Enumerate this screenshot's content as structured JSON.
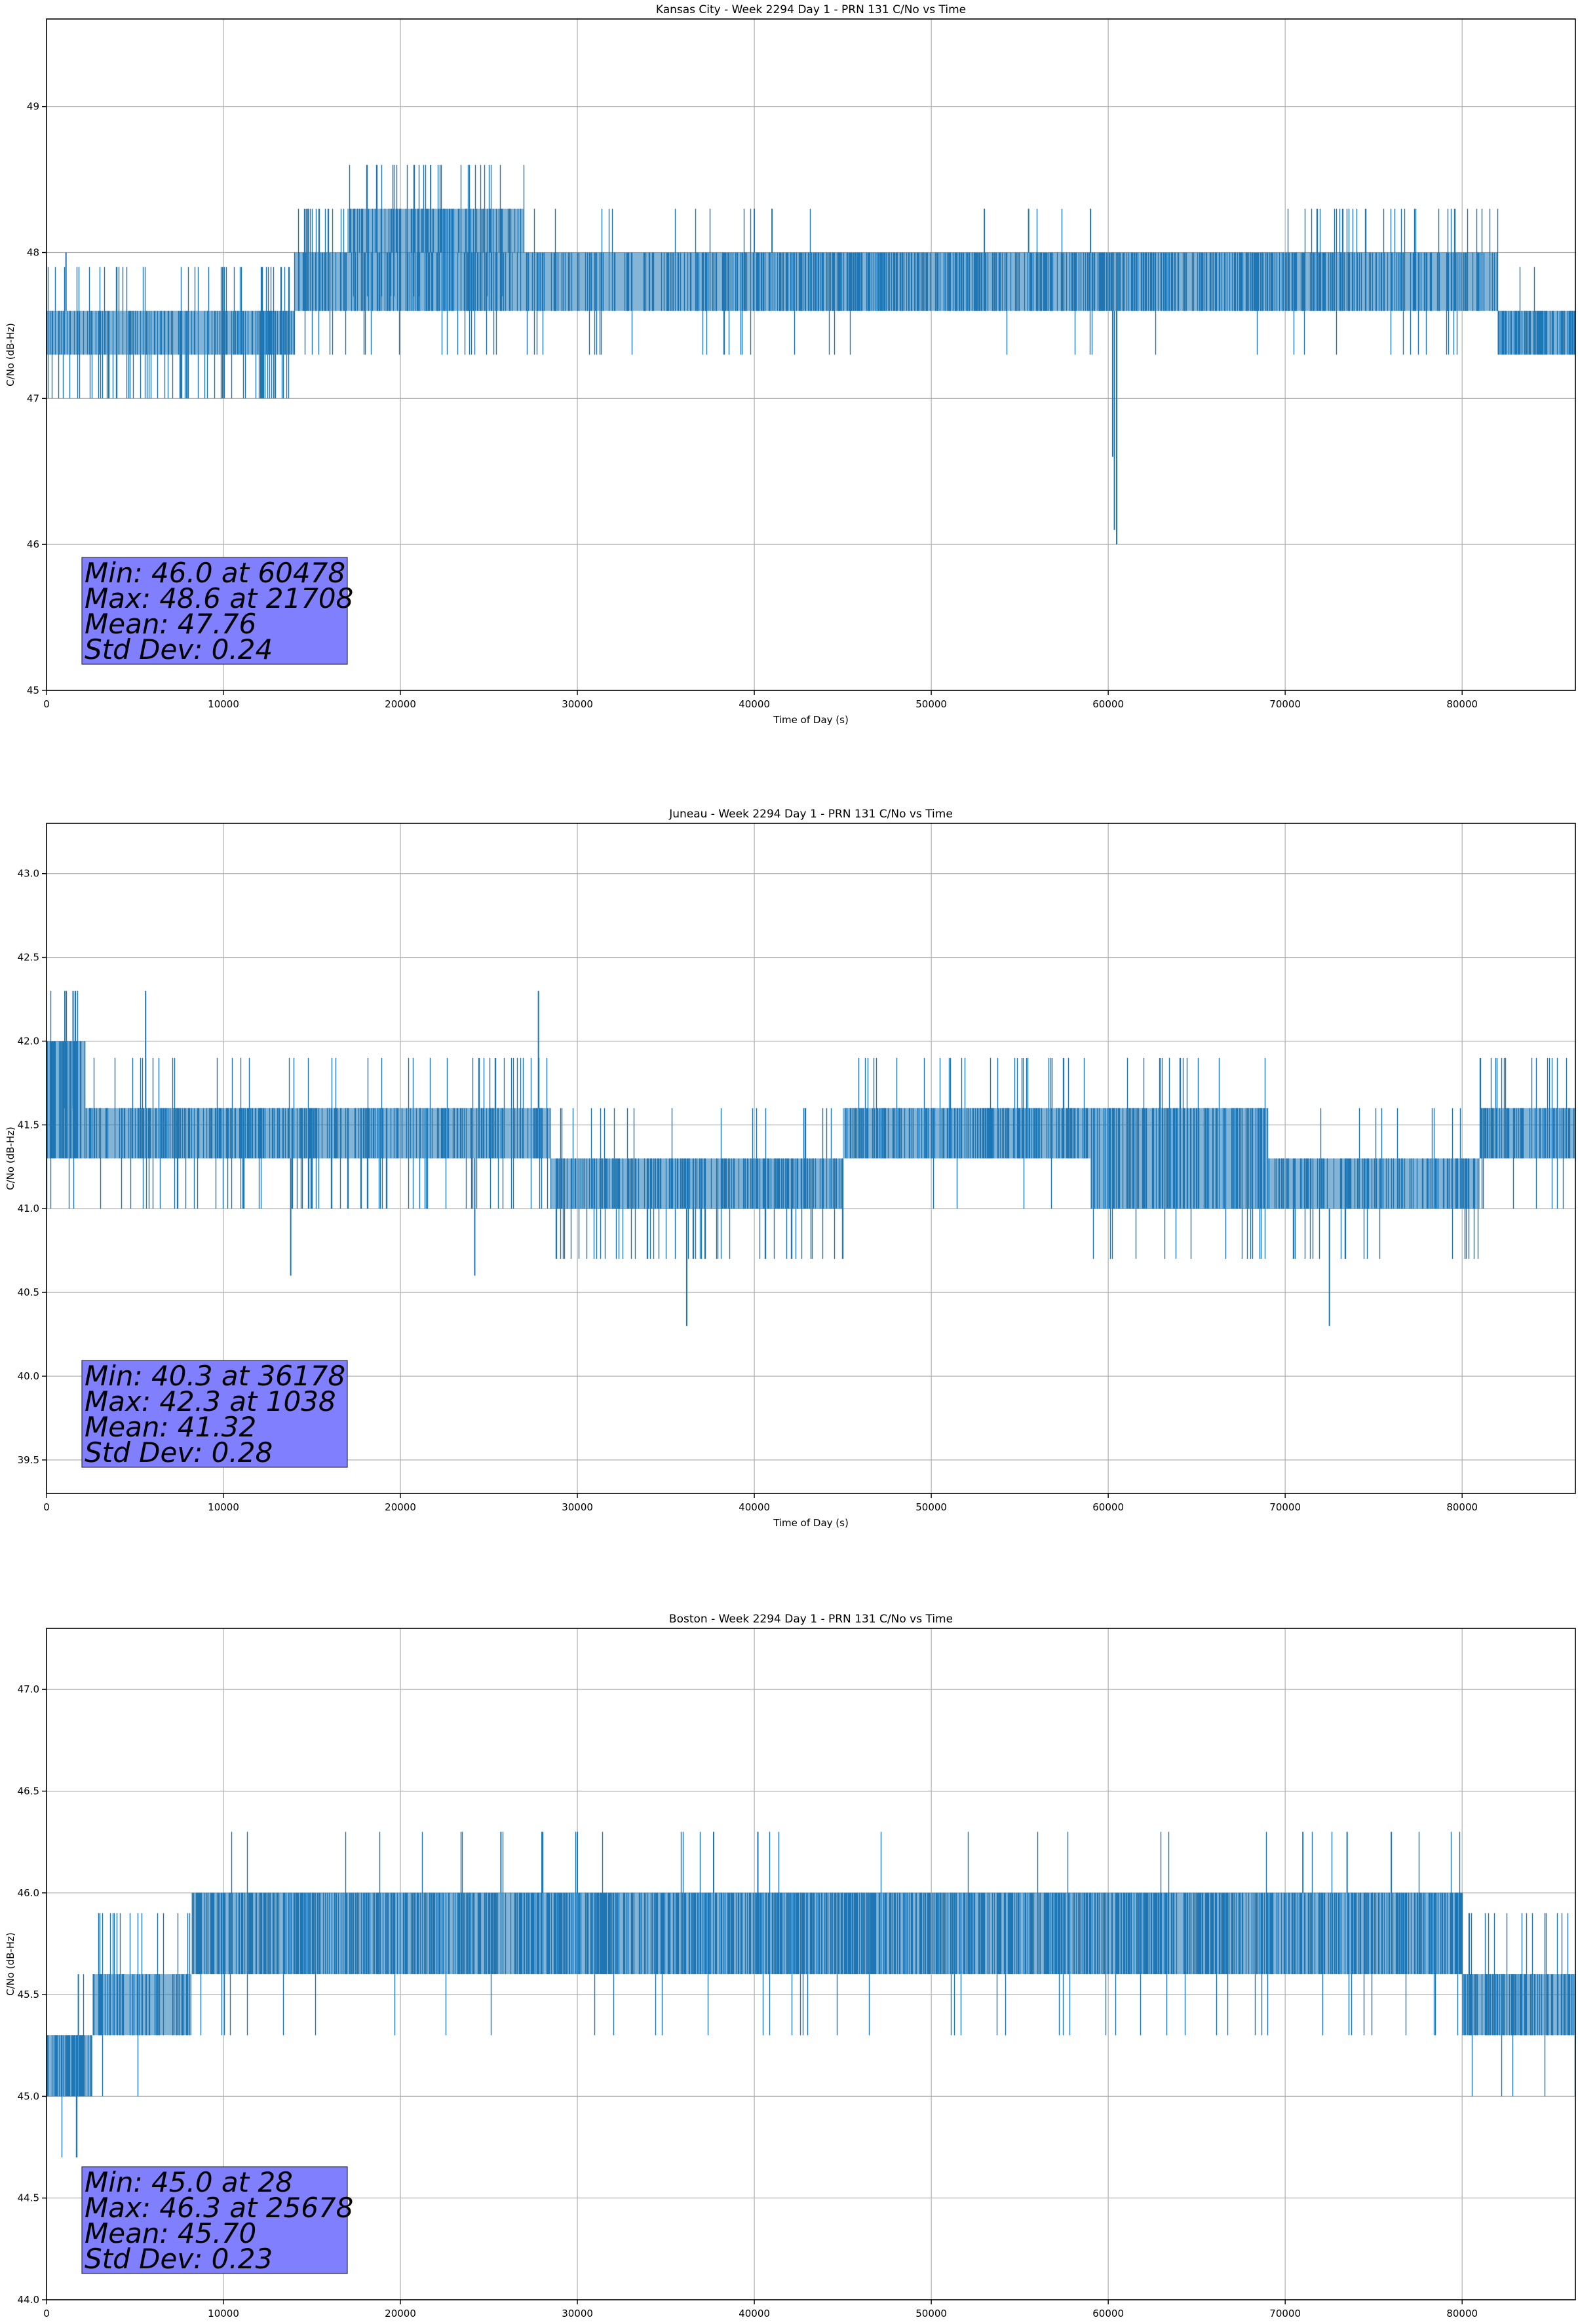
{
  "chart_data": [
    {
      "type": "line",
      "title": "Kansas City - Week 2294 Day 1 - PRN 131 C/No vs Time",
      "xlabel": "Time of Day (s)",
      "ylabel": "C/No (dB-Hz)",
      "xlim": [
        0,
        86400
      ],
      "ylim": [
        45.0,
        49.6
      ],
      "xticks": [
        0,
        10000,
        20000,
        30000,
        40000,
        50000,
        60000,
        70000,
        80000
      ],
      "yticks": [
        45,
        46,
        47,
        48,
        49
      ],
      "ytick_decimals": 0,
      "grid": true,
      "series_color": "#1f77b4",
      "stats_box_color": "#8080ff",
      "stats": [
        "Min: 46.0 at 60478",
        "Max: 48.6 at 21708",
        "Mean: 47.76",
        "Std Dev: 0.24"
      ],
      "segments": [
        {
          "x0": 0,
          "x1": 14000,
          "lo": 47.3,
          "hi": 47.6,
          "plo": 0.45,
          "phi": 0.3,
          "density": 0.35
        },
        {
          "x0": 14000,
          "x1": 27000,
          "lo": 47.6,
          "hi": 48.0,
          "plo": 0.15,
          "phi": 0.35,
          "density": 0.4
        },
        {
          "x0": 17000,
          "x1": 27000,
          "lo": 48.0,
          "hi": 48.3,
          "plo": 0.2,
          "phi": 0.3,
          "density": 0.3
        },
        {
          "x0": 27000,
          "x1": 40000,
          "lo": 47.6,
          "hi": 48.0,
          "plo": 0.25,
          "phi": 0.1,
          "density": 0.35
        },
        {
          "x0": 40000,
          "x1": 71000,
          "lo": 47.6,
          "hi": 48.0,
          "plo": 0.04,
          "phi": 0.03,
          "density": 0.5
        },
        {
          "x0": 71000,
          "x1": 82000,
          "lo": 47.6,
          "hi": 48.0,
          "plo": 0.08,
          "phi": 0.25,
          "density": 0.4
        },
        {
          "x0": 82000,
          "x1": 86400,
          "lo": 47.3,
          "hi": 47.6,
          "plo": 0.05,
          "phi": 0.05,
          "density": 0.5
        }
      ],
      "spikes": [
        {
          "x": 21708,
          "lo": 48.0,
          "hi": 48.6
        },
        {
          "x": 60478,
          "lo": 46.0,
          "hi": 47.6
        },
        {
          "x": 60350,
          "lo": 46.1,
          "hi": 47.6
        },
        {
          "x": 60250,
          "lo": 46.6,
          "hi": 47.6
        },
        {
          "x": 14800,
          "lo": 48.0,
          "hi": 48.3
        },
        {
          "x": 40000,
          "lo": 48.0,
          "hi": 48.3
        },
        {
          "x": 41000,
          "lo": 48.0,
          "hi": 48.3
        },
        {
          "x": 53000,
          "lo": 48.0,
          "hi": 48.3
        },
        {
          "x": 55500,
          "lo": 48.0,
          "hi": 48.3
        },
        {
          "x": 59000,
          "lo": 48.0,
          "hi": 48.3
        },
        {
          "x": 1100,
          "lo": 47.6,
          "hi": 48.0
        }
      ]
    },
    {
      "type": "line",
      "title": "Juneau - Week 2294 Day 1 - PRN 131 C/No vs Time",
      "xlabel": "Time of Day (s)",
      "ylabel": "C/No (dB-Hz)",
      "xlim": [
        0,
        86400
      ],
      "ylim": [
        39.3,
        43.3
      ],
      "xticks": [
        0,
        10000,
        20000,
        30000,
        40000,
        50000,
        60000,
        70000,
        80000
      ],
      "yticks": [
        39.5,
        40.0,
        40.5,
        41.0,
        41.5,
        42.0,
        42.5,
        43.0
      ],
      "ytick_decimals": 1,
      "grid": true,
      "series_color": "#1f77b4",
      "stats_box_color": "#8080ff",
      "stats": [
        "Min: 40.3 at 36178",
        "Max: 42.3 at 1038",
        "Mean: 41.32",
        "Std Dev: 0.28"
      ],
      "segments": [
        {
          "x0": 0,
          "x1": 2200,
          "lo": 41.3,
          "hi": 42.0,
          "plo": 0.1,
          "phi": 0.1,
          "density": 0.6
        },
        {
          "x0": 2200,
          "x1": 28500,
          "lo": 41.3,
          "hi": 41.6,
          "plo": 0.25,
          "phi": 0.2,
          "density": 0.4
        },
        {
          "x0": 28500,
          "x1": 45000,
          "lo": 41.0,
          "hi": 41.3,
          "plo": 0.3,
          "phi": 0.1,
          "density": 0.4
        },
        {
          "x0": 45000,
          "x1": 59000,
          "lo": 41.3,
          "hi": 41.6,
          "plo": 0.05,
          "phi": 0.15,
          "density": 0.45
        },
        {
          "x0": 59000,
          "x1": 69000,
          "lo": 41.0,
          "hi": 41.6,
          "plo": 0.15,
          "phi": 0.1,
          "density": 0.4
        },
        {
          "x0": 69000,
          "x1": 81000,
          "lo": 41.0,
          "hi": 41.3,
          "plo": 0.2,
          "phi": 0.1,
          "density": 0.4
        },
        {
          "x0": 81000,
          "x1": 86400,
          "lo": 41.3,
          "hi": 41.6,
          "plo": 0.05,
          "phi": 0.2,
          "density": 0.45
        }
      ],
      "spikes": [
        {
          "x": 36178,
          "lo": 40.3,
          "hi": 41.0
        },
        {
          "x": 72500,
          "lo": 40.3,
          "hi": 41.0
        },
        {
          "x": 1038,
          "lo": 41.6,
          "hi": 42.3
        },
        {
          "x": 1500,
          "lo": 41.6,
          "hi": 42.3
        },
        {
          "x": 5600,
          "lo": 41.6,
          "hi": 42.3
        },
        {
          "x": 27800,
          "lo": 41.6,
          "hi": 42.3
        },
        {
          "x": 13800,
          "lo": 40.6,
          "hi": 41.3
        },
        {
          "x": 24200,
          "lo": 40.6,
          "hi": 41.3
        }
      ]
    },
    {
      "type": "line",
      "title": "Boston - Week 2294 Day 1 - PRN 131 C/No vs Time",
      "xlabel": "Time of Day (s)",
      "ylabel": "C/No (dB-Hz)",
      "xlim": [
        0,
        86400
      ],
      "ylim": [
        44.0,
        47.3
      ],
      "xticks": [
        0,
        10000,
        20000,
        30000,
        40000,
        50000,
        60000,
        70000,
        80000
      ],
      "yticks": [
        44.0,
        44.5,
        45.0,
        45.5,
        46.0,
        46.5,
        47.0
      ],
      "ytick_decimals": 1,
      "grid": true,
      "series_color": "#1f77b4",
      "stats_box_color": "#8080ff",
      "stats": [
        "Min: 45.0 at 28",
        "Max: 46.3 at 25678",
        "Mean: 45.70",
        "Std Dev: 0.23"
      ],
      "segments": [
        {
          "x0": 0,
          "x1": 2600,
          "lo": 45.0,
          "hi": 45.3,
          "plo": 0.05,
          "phi": 0.05,
          "density": 0.6
        },
        {
          "x0": 2600,
          "x1": 8200,
          "lo": 45.3,
          "hi": 45.6,
          "plo": 0.05,
          "phi": 0.3,
          "density": 0.4
        },
        {
          "x0": 8200,
          "x1": 80000,
          "lo": 45.6,
          "hi": 46.0,
          "plo": 0.06,
          "phi": 0.04,
          "density": 0.5
        },
        {
          "x0": 80000,
          "x1": 86400,
          "lo": 45.3,
          "hi": 45.6,
          "plo": 0.05,
          "phi": 0.25,
          "density": 0.45
        }
      ],
      "spikes": [
        {
          "x": 25678,
          "lo": 46.0,
          "hi": 46.3
        },
        {
          "x": 28000,
          "lo": 46.0,
          "hi": 46.3
        },
        {
          "x": 30000,
          "lo": 46.0,
          "hi": 46.3
        },
        {
          "x": 37700,
          "lo": 46.0,
          "hi": 46.3
        },
        {
          "x": 40200,
          "lo": 46.0,
          "hi": 46.3
        },
        {
          "x": 71000,
          "lo": 46.0,
          "hi": 46.3
        },
        {
          "x": 73500,
          "lo": 46.0,
          "hi": 46.3
        },
        {
          "x": 76000,
          "lo": 46.0,
          "hi": 46.3
        },
        {
          "x": 28,
          "lo": 45.0,
          "hi": 45.3
        },
        {
          "x": 1800,
          "lo": 45.3,
          "hi": 45.6
        }
      ]
    }
  ]
}
